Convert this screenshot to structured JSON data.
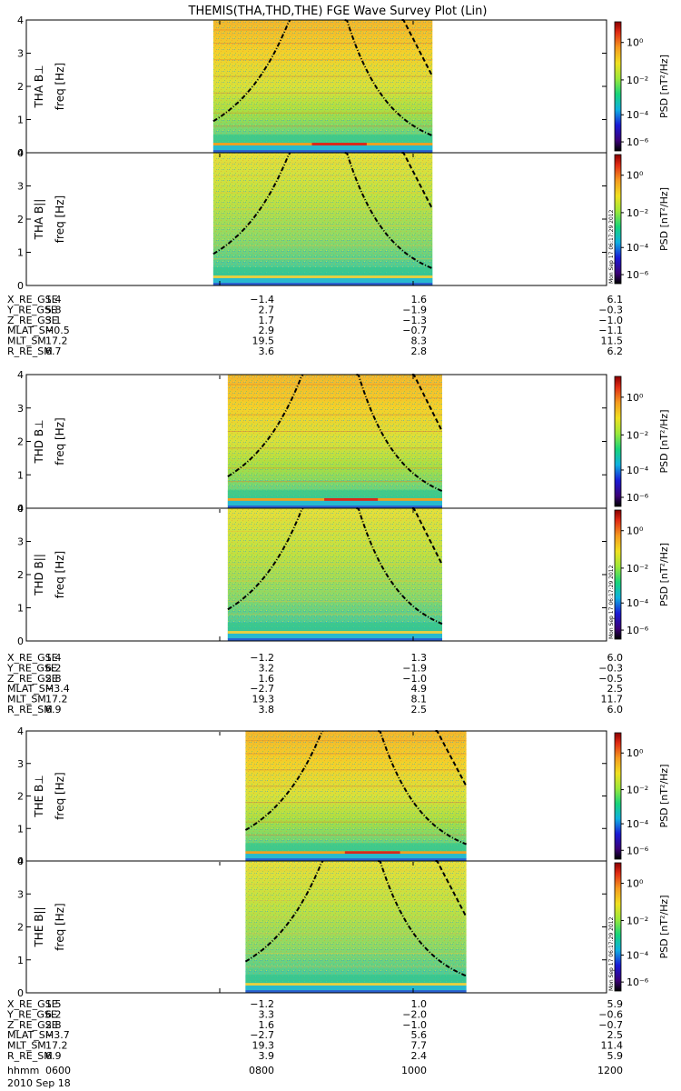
{
  "title": "THEMIS(THA,THD,THE) FGE Wave Survey Plot (Lin)",
  "colorbar": {
    "label": "PSD [nT²/Hz]",
    "ticks": [
      "10⁰",
      "10⁻²",
      "10⁻⁴",
      "10⁻⁶"
    ],
    "stamp": "Mon Sep 17 06:17:29 2012",
    "colors": [
      "#000000",
      "#3b0075",
      "#1a1ad6",
      "#0fb0e0",
      "#18d47a",
      "#9be83a",
      "#f0e020",
      "#f59a1f",
      "#e02a14",
      "#8a0000"
    ]
  },
  "chart_data": [
    {
      "type": "heatmap",
      "probe": "THA",
      "panels": [
        {
          "ylabel_top": "THA B⊥",
          "ylabel_bottom": "freq [Hz]"
        },
        {
          "ylabel_top": "THA B||",
          "ylabel_bottom": "freq [Hz]"
        }
      ],
      "ylim": [
        0,
        4
      ],
      "yticks": [
        "0",
        "1",
        "2",
        "3",
        "4"
      ],
      "time_range_hhmm": [
        "0600",
        "1200"
      ],
      "data_span_hhmm": [
        "0756",
        "1012"
      ],
      "ephemeris": {
        "rows": [
          "X_RE_GSE",
          "Y_RE_GSE",
          "Z_RE_GSE",
          "MLAT_SM",
          "MLT_SM",
          "R_RE_SM"
        ],
        "values": [
          [
            "1.4",
            "−1.4",
            "1.6",
            "6.1"
          ],
          [
            "5.8",
            "2.7",
            "−1.9",
            "−0.3"
          ],
          [
            "3.1",
            "1.7",
            "−1.3",
            "−1.0"
          ],
          [
            "−0.5",
            "2.9",
            "−0.7",
            "−1.1"
          ],
          [
            "17.2",
            "19.5",
            "8.3",
            "11.5"
          ],
          [
            "6.7",
            "3.6",
            "2.8",
            "6.2"
          ]
        ]
      }
    },
    {
      "type": "heatmap",
      "probe": "THD",
      "panels": [
        {
          "ylabel_top": "THD B⊥",
          "ylabel_bottom": "freq [Hz]"
        },
        {
          "ylabel_top": "THD B||",
          "ylabel_bottom": "freq [Hz]"
        }
      ],
      "ylim": [
        0,
        4
      ],
      "yticks": [
        "0",
        "1",
        "2",
        "3",
        "4"
      ],
      "time_range_hhmm": [
        "0600",
        "1200"
      ],
      "data_span_hhmm": [
        "0805",
        "1018"
      ],
      "ephemeris": {
        "rows": [
          "X_RE_GSE",
          "Y_RE_GSE",
          "Z_RE_GSE",
          "MLAT_SM",
          "MLT_SM",
          "R_RE_SM"
        ],
        "values": [
          [
            "1.4",
            "−1.2",
            "1.3",
            "6.0"
          ],
          [
            "6.2",
            "3.2",
            "−1.9",
            "−0.3"
          ],
          [
            "2.8",
            "1.6",
            "−1.0",
            "−0.5"
          ],
          [
            "−3.4",
            "−2.7",
            "4.9",
            "2.5"
          ],
          [
            "17.2",
            "19.3",
            "8.1",
            "11.7"
          ],
          [
            "6.9",
            "3.8",
            "2.5",
            "6.0"
          ]
        ]
      }
    },
    {
      "type": "heatmap",
      "probe": "THE",
      "panels": [
        {
          "ylabel_top": "THE B⊥",
          "ylabel_bottom": "freq [Hz]"
        },
        {
          "ylabel_top": "THE B||",
          "ylabel_bottom": "freq [Hz]"
        }
      ],
      "ylim": [
        0,
        4
      ],
      "yticks": [
        "0",
        "1",
        "2",
        "3",
        "4"
      ],
      "time_range_hhmm": [
        "0600",
        "1200"
      ],
      "data_span_hhmm": [
        "0816",
        "1033"
      ],
      "ephemeris": {
        "rows": [
          "X_RE_GSE",
          "Y_RE_GSE",
          "Z_RE_GSE",
          "MLAT_SM",
          "MLT_SM",
          "R_RE_SM"
        ],
        "values": [
          [
            "1.5",
            "−1.2",
            "1.0",
            "5.9"
          ],
          [
            "6.2",
            "3.3",
            "−2.0",
            "−0.6"
          ],
          [
            "2.8",
            "1.6",
            "−1.0",
            "−0.7"
          ],
          [
            "−3.7",
            "−2.7",
            "5.6",
            "2.5"
          ],
          [
            "17.2",
            "19.3",
            "7.7",
            "11.4"
          ],
          [
            "6.9",
            "3.9",
            "2.4",
            "5.9"
          ]
        ]
      }
    }
  ],
  "time_axis": {
    "label": "hhmm",
    "ticks": [
      "0600",
      "0800",
      "1000",
      "1200"
    ],
    "date": "2010 Sep 18"
  }
}
